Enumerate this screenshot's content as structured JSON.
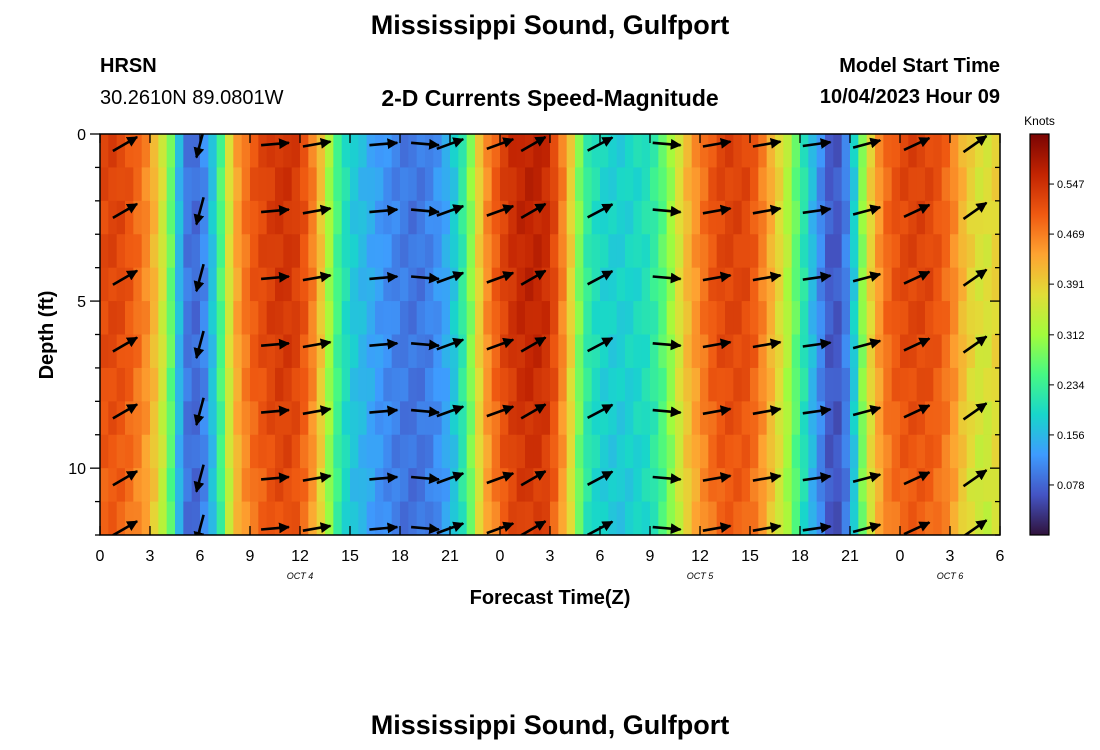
{
  "header": {
    "title": "Mississippi Sound, Gulfport",
    "station_code": "HRSN",
    "station_coords": "30.2610N  89.0801W",
    "plot_name": "2-D Currents Speed-Magnitude",
    "model_start_label": "Model Start Time",
    "model_start_value": "10/04/2023 Hour 09"
  },
  "footer": {
    "next_title": "Mississippi Sound, Gulfport"
  },
  "chart_data": {
    "type": "heatmap",
    "title": "2-D Currents Speed-Magnitude",
    "xlabel": "Forecast Time(Z)",
    "ylabel": "Depth (ft)",
    "x_unit": "hours since 2023-10-04 00Z",
    "xlim": [
      0,
      54
    ],
    "ylim": [
      0,
      12
    ],
    "y_inverted": true,
    "x_ticks": [
      0,
      3,
      6,
      9,
      12,
      15,
      18,
      21,
      24,
      27,
      30,
      33,
      36,
      39,
      42,
      45,
      48,
      51,
      54
    ],
    "x_tick_labels": [
      "0",
      "3",
      "6",
      "9",
      "12",
      "15",
      "18",
      "21",
      "0",
      "3",
      "6",
      "9",
      "12",
      "15",
      "18",
      "21",
      "0",
      "3",
      "6"
    ],
    "y_ticks": [
      0,
      5,
      10
    ],
    "y_tick_labels": [
      "0",
      "5",
      "10"
    ],
    "date_labels": [
      {
        "x": 12,
        "label": "OCT 4"
      },
      {
        "x": 36,
        "label": "OCT 5"
      },
      {
        "x": 51,
        "label": "OCT 6"
      }
    ],
    "colorbar": {
      "unit": "Knots",
      "min": 0.0,
      "max": 0.625,
      "ticks": [
        0.547,
        0.469,
        0.391,
        0.312,
        0.234,
        0.156,
        0.078
      ],
      "tick_labels": [
        "0.547",
        "0.469",
        "0.391",
        "0.312",
        "0.234",
        "0.156",
        "0.078"
      ],
      "colors": [
        "#30123b",
        "#4454c4",
        "#3e9bfe",
        "#18d6cb",
        "#46f884",
        "#a2fc3c",
        "#e1dd37",
        "#fea331",
        "#ef5911",
        "#c22402",
        "#7a0403"
      ]
    },
    "speed_profile": {
      "description": "depth-averaged current speed (knots) at hourly forecast times",
      "hours": [
        0,
        1,
        2,
        3,
        4,
        5,
        6,
        7,
        8,
        9,
        10,
        11,
        12,
        13,
        14,
        15,
        16,
        17,
        18,
        19,
        20,
        21,
        22,
        23,
        24,
        25,
        26,
        27,
        28,
        29,
        30,
        31,
        32,
        33,
        34,
        35,
        36,
        37,
        38,
        39,
        40,
        41,
        42,
        43,
        44,
        45,
        46,
        47,
        48,
        49,
        50,
        51,
        52,
        53,
        54
      ],
      "speed": [
        0.52,
        0.53,
        0.5,
        0.45,
        0.33,
        0.1,
        0.08,
        0.2,
        0.42,
        0.5,
        0.53,
        0.55,
        0.53,
        0.45,
        0.27,
        0.18,
        0.15,
        0.12,
        0.1,
        0.09,
        0.11,
        0.15,
        0.25,
        0.44,
        0.52,
        0.56,
        0.57,
        0.55,
        0.44,
        0.24,
        0.19,
        0.18,
        0.19,
        0.21,
        0.28,
        0.4,
        0.47,
        0.52,
        0.53,
        0.52,
        0.45,
        0.36,
        0.24,
        0.13,
        0.05,
        0.12,
        0.36,
        0.48,
        0.52,
        0.53,
        0.52,
        0.48,
        0.4,
        0.36,
        0.4
      ]
    },
    "vectors": {
      "description": "current direction arrows at sampled times/depths (direction in degrees, math convention)",
      "samples": [
        {
          "x": 1.5,
          "dir": 30
        },
        {
          "x": 6.0,
          "dir": 255
        },
        {
          "x": 10.5,
          "dir": 5
        },
        {
          "x": 13.0,
          "dir": 10
        },
        {
          "x": 17.0,
          "dir": 5
        },
        {
          "x": 19.5,
          "dir": 355
        },
        {
          "x": 21.0,
          "dir": 20
        },
        {
          "x": 24.0,
          "dir": 20
        },
        {
          "x": 26.0,
          "dir": 30
        },
        {
          "x": 30.0,
          "dir": 28
        },
        {
          "x": 34.0,
          "dir": 355
        },
        {
          "x": 37.0,
          "dir": 10
        },
        {
          "x": 40.0,
          "dir": 10
        },
        {
          "x": 43.0,
          "dir": 8
        },
        {
          "x": 46.0,
          "dir": 15
        },
        {
          "x": 49.0,
          "dir": 25
        },
        {
          "x": 52.5,
          "dir": 35
        }
      ],
      "depths": [
        0.3,
        2.3,
        4.3,
        6.3,
        8.3,
        10.3,
        11.8
      ]
    }
  }
}
